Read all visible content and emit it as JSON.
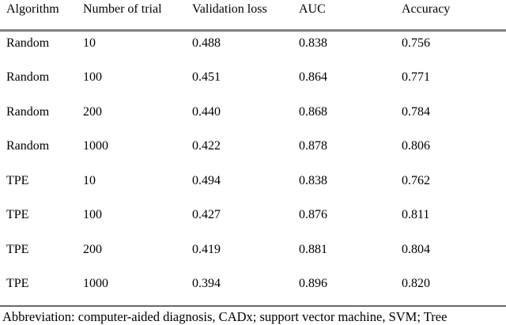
{
  "table": {
    "headers": [
      "Algorithm",
      "Number of trial",
      "Validation loss",
      "AUC",
      "Accuracy"
    ],
    "rows": [
      {
        "algorithm": "Random",
        "trials": "10",
        "validation_loss": "0.488",
        "auc": "0.838",
        "accuracy": "0.756"
      },
      {
        "algorithm": "Random",
        "trials": "100",
        "validation_loss": "0.451",
        "auc": "0.864",
        "accuracy": "0.771"
      },
      {
        "algorithm": "Random",
        "trials": "200",
        "validation_loss": "0.440",
        "auc": "0.868",
        "accuracy": "0.784"
      },
      {
        "algorithm": "Random",
        "trials": "1000",
        "validation_loss": "0.422",
        "auc": "0.878",
        "accuracy": "0.806"
      },
      {
        "algorithm": "TPE",
        "trials": "10",
        "validation_loss": "0.494",
        "auc": "0.838",
        "accuracy": "0.762"
      },
      {
        "algorithm": "TPE",
        "trials": "100",
        "validation_loss": "0.427",
        "auc": "0.876",
        "accuracy": "0.811"
      },
      {
        "algorithm": "TPE",
        "trials": "200",
        "validation_loss": "0.419",
        "auc": "0.881",
        "accuracy": "0.804"
      },
      {
        "algorithm": "TPE",
        "trials": "1000",
        "validation_loss": "0.394",
        "auc": "0.896",
        "accuracy": "0.820"
      }
    ],
    "footnote": "Abbreviation: computer-aided diagnosis, CADx; support vector machine, SVM; Tree"
  },
  "colors": {
    "text": "#000000",
    "background": "#ffffff",
    "rule_top": "#808080",
    "rule_bottom": "#686868"
  }
}
